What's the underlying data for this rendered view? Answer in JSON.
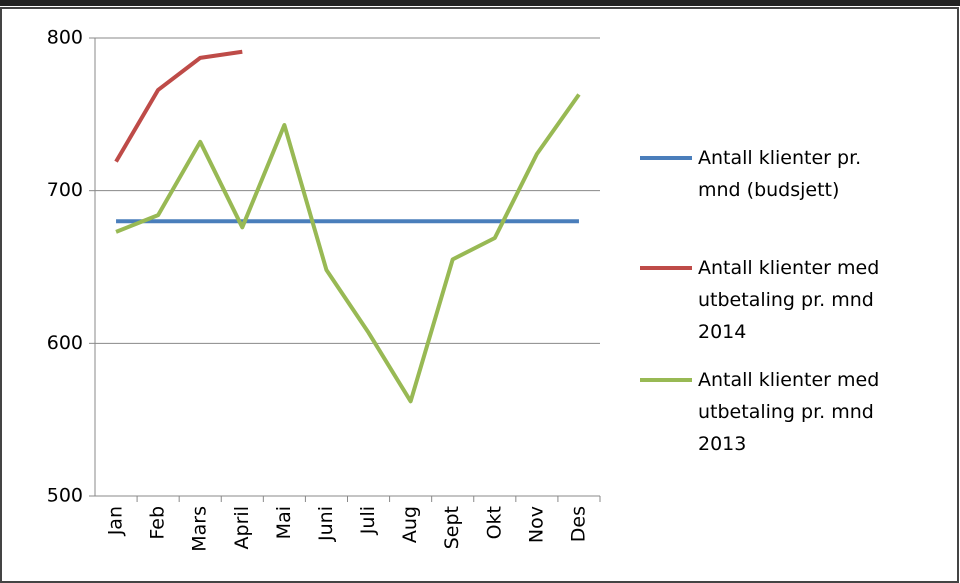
{
  "chart_data": {
    "type": "line",
    "categories": [
      "Jan",
      "Feb",
      "Mars",
      "April",
      "Mai",
      "Juni",
      "Juli",
      "Aug",
      "Sept",
      "Okt",
      "Nov",
      "Des"
    ],
    "series": [
      {
        "name": "Antall klienter pr. mnd (budsjett)",
        "color": "#4a7ebb",
        "values": [
          680,
          680,
          680,
          680,
          680,
          680,
          680,
          680,
          680,
          680,
          680,
          680
        ]
      },
      {
        "name": "Antall klienter med utbetaling pr. mnd 2014",
        "color": "#be4b48",
        "values": [
          719,
          766,
          787,
          791,
          null,
          null,
          null,
          null,
          null,
          null,
          null,
          null
        ]
      },
      {
        "name": "Antall klienter med utbetaling pr. mnd 2013",
        "color": "#98b954",
        "values": [
          673,
          684,
          732,
          676,
          743,
          648,
          607,
          562,
          655,
          669,
          724,
          763
        ]
      }
    ],
    "ylim": [
      500,
      800
    ],
    "yticks": [
      500,
      600,
      700,
      800
    ],
    "grid": true,
    "legend": "right"
  }
}
